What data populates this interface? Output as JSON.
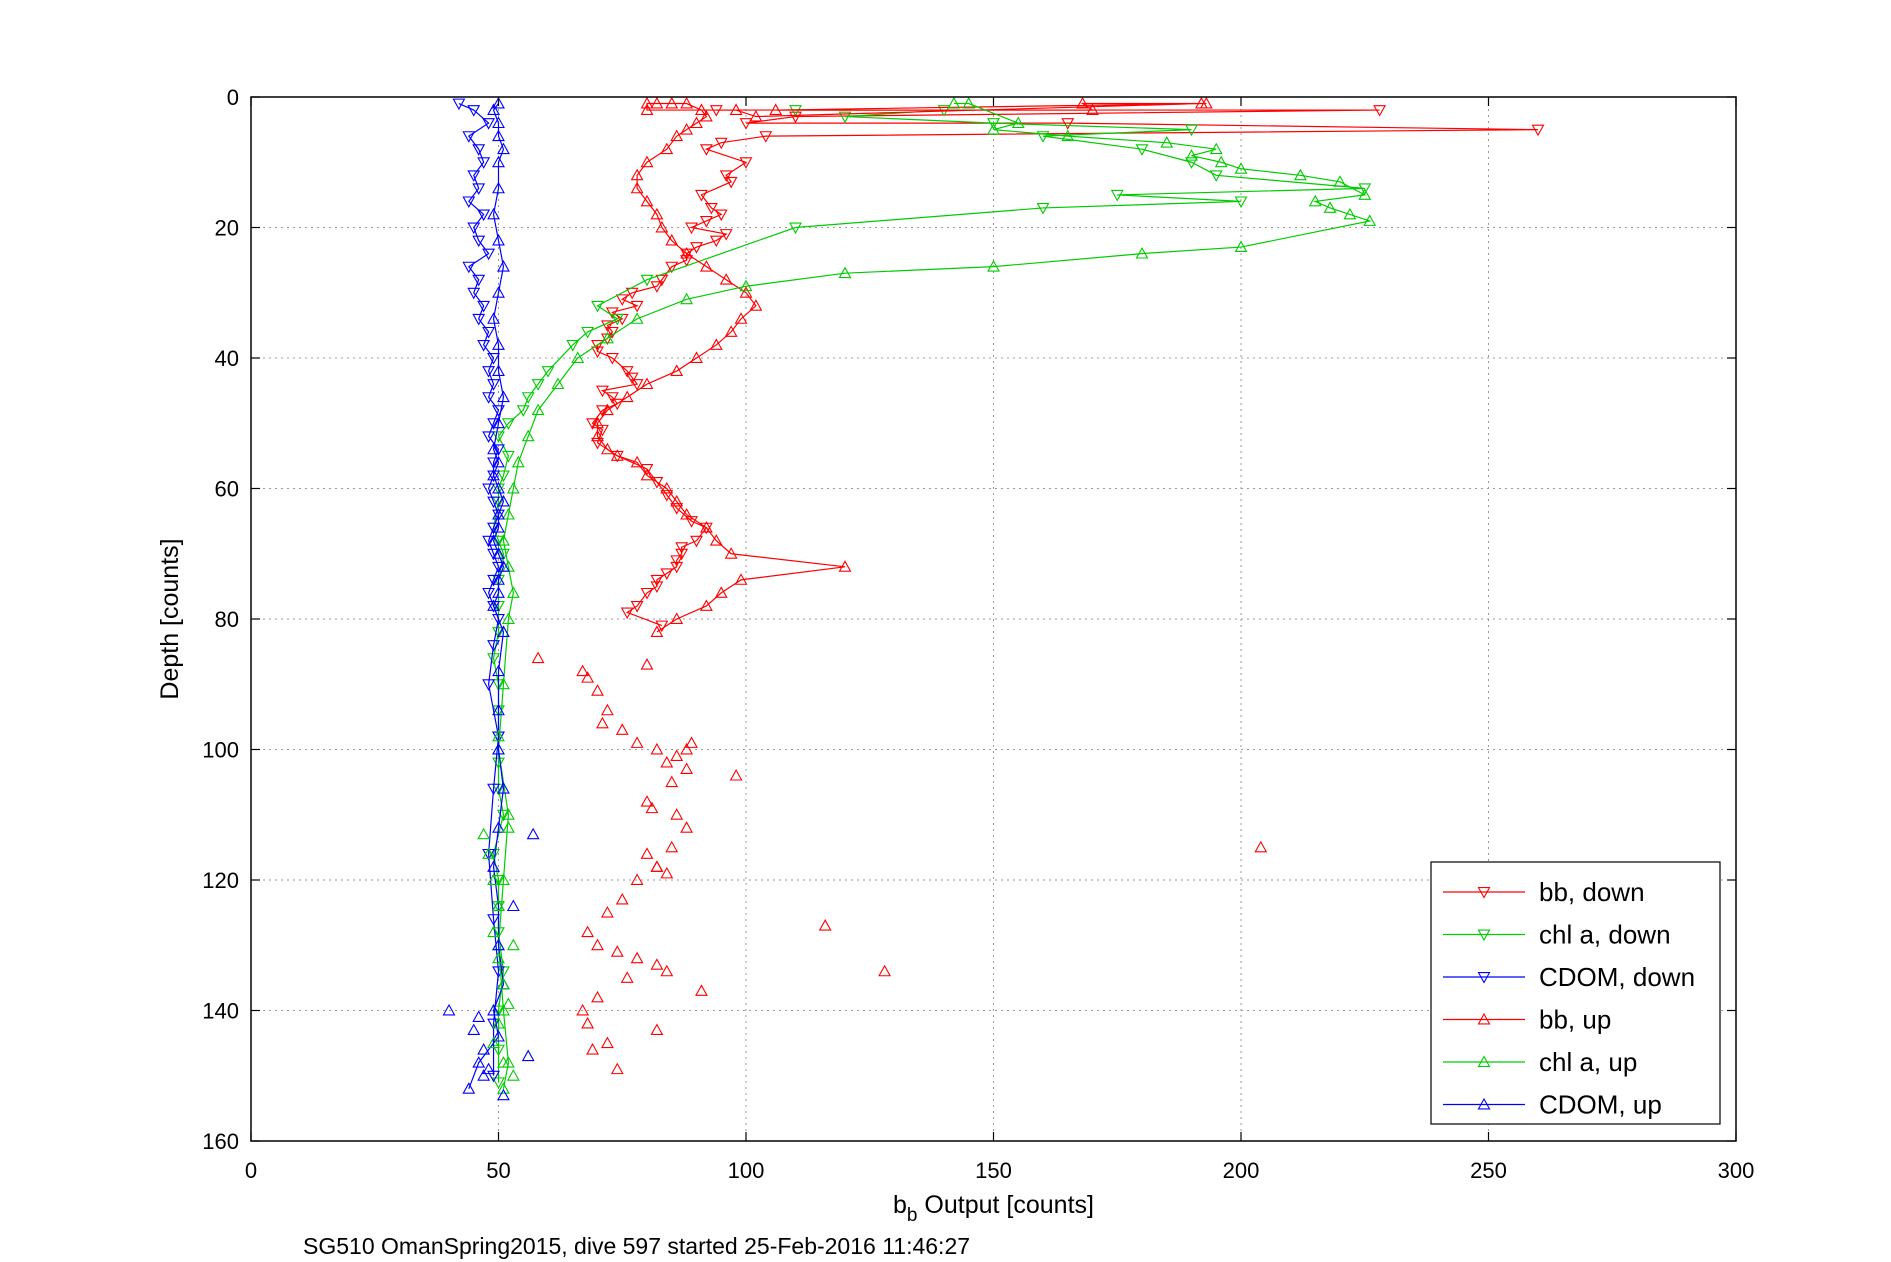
{
  "chart_data": {
    "type": "scatter",
    "title": "",
    "xlabel": "b",
    "xlabel_sub": "b",
    "xlabel_rest": " Output [counts]",
    "ylabel": "Depth [counts]",
    "caption": "SG510 OmanSpring2015, dive 597 started 25-Feb-2016 11:46:27",
    "xlim": [
      0,
      300
    ],
    "ylim": [
      0,
      160
    ],
    "y_reversed": true,
    "grid": true,
    "legend_position": "bottom-right",
    "xticks": [
      0,
      50,
      100,
      150,
      200,
      250,
      300
    ],
    "yticks": [
      0,
      20,
      40,
      60,
      80,
      100,
      120,
      140,
      160
    ],
    "series": [
      {
        "name": "bb, down",
        "color": "#ff0000",
        "marker": "triangle-down",
        "line": true,
        "x": [
          94,
          228,
          110,
          100,
          165,
          260,
          104,
          95,
          92,
          100,
          96,
          97,
          91,
          93,
          95,
          92,
          89,
          96,
          94,
          90,
          88,
          88,
          85,
          83,
          82,
          77,
          75,
          78,
          73,
          75,
          72,
          73,
          72,
          70,
          70,
          73,
          76,
          77,
          78,
          71,
          73,
          74,
          71,
          69,
          71,
          70,
          74,
          80,
          82,
          84,
          86,
          89,
          92,
          90,
          87,
          87,
          86,
          86,
          84,
          82,
          82,
          80,
          78,
          76,
          83
        ],
        "y": [
          2,
          2,
          3,
          4,
          4,
          5,
          6,
          7,
          8,
          10,
          12,
          13,
          15,
          17,
          18,
          19,
          20,
          21,
          22,
          23,
          24,
          25,
          26,
          28,
          29,
          30,
          31,
          32,
          33,
          34,
          35,
          36,
          37,
          38,
          39,
          40,
          42,
          43,
          44,
          45,
          46,
          47,
          48,
          50,
          51,
          53,
          55,
          57,
          59,
          61,
          63,
          65,
          66,
          68,
          69,
          70,
          71,
          72,
          73,
          74,
          75,
          76,
          78,
          79,
          81
        ]
      },
      {
        "name": "chl a, down",
        "color": "#00cc00",
        "marker": "triangle-down",
        "line": true,
        "x": [
          110,
          140,
          120,
          150,
          190,
          160,
          180,
          190,
          195,
          225,
          175,
          200,
          160,
          110,
          80,
          70,
          74,
          68,
          65,
          60,
          58,
          56,
          55,
          52,
          50,
          52,
          51,
          50,
          50,
          49,
          50,
          51,
          50,
          50,
          50,
          49,
          50,
          50,
          50,
          50,
          50,
          51,
          49,
          50,
          50,
          50,
          51,
          50,
          50,
          50
        ],
        "y": [
          2,
          2,
          3,
          4,
          5,
          6,
          8,
          10,
          12,
          14,
          15,
          16,
          17,
          20,
          28,
          32,
          34,
          36,
          38,
          42,
          44,
          46,
          48,
          50,
          52,
          55,
          58,
          60,
          62,
          66,
          68,
          70,
          74,
          78,
          82,
          86,
          90,
          94,
          98,
          102,
          106,
          110,
          116,
          120,
          124,
          128,
          134,
          140,
          146,
          151
        ]
      },
      {
        "name": "CDOM, down",
        "color": "#0000ff",
        "marker": "triangle-down",
        "line": true,
        "x": [
          42,
          45,
          48,
          44,
          46,
          47,
          45,
          46,
          44,
          47,
          45,
          46,
          48,
          44,
          46,
          45,
          47,
          46,
          48,
          47,
          49,
          48,
          49,
          48,
          50,
          49,
          48,
          50,
          49,
          49,
          48,
          49,
          50,
          49,
          48,
          49,
          50,
          49,
          48,
          49,
          50,
          49,
          48,
          50,
          49,
          48,
          49,
          50,
          49,
          49
        ],
        "y": [
          1,
          2,
          4,
          6,
          8,
          10,
          12,
          14,
          16,
          18,
          20,
          22,
          24,
          26,
          28,
          30,
          32,
          34,
          36,
          38,
          40,
          42,
          44,
          46,
          48,
          50,
          52,
          54,
          56,
          58,
          60,
          62,
          64,
          66,
          68,
          70,
          72,
          74,
          76,
          78,
          80,
          84,
          90,
          98,
          106,
          116,
          126,
          134,
          142,
          150
        ]
      },
      {
        "name": "bb, up",
        "color": "#ff0000",
        "marker": "triangle-up",
        "line": true,
        "x": [
          82,
          86,
          92,
          95,
          99,
          120,
          97,
          94,
          92,
          88,
          86,
          84,
          80,
          78,
          74,
          72,
          70,
          70,
          72,
          76,
          80,
          86,
          90,
          94,
          97,
          99,
          102,
          100,
          96,
          92,
          88,
          85,
          83,
          82,
          80,
          78,
          78,
          80,
          84,
          86,
          88,
          90,
          92,
          91,
          88,
          85,
          82,
          80,
          80,
          98,
          102,
          192,
          168,
          170,
          106,
          193
        ],
        "y": [
          82,
          80,
          78,
          76,
          74,
          72,
          70,
          68,
          66,
          64,
          62,
          60,
          58,
          56,
          55,
          54,
          52,
          50,
          48,
          46,
          44,
          42,
          40,
          38,
          36,
          34,
          32,
          30,
          28,
          26,
          24,
          22,
          20,
          18,
          16,
          14,
          12,
          10,
          8,
          6,
          5,
          4,
          3,
          2,
          1,
          1,
          1,
          1,
          2,
          2,
          3,
          1,
          1,
          2,
          2,
          1
        ]
      },
      {
        "name": "chl a, up",
        "color": "#00cc00",
        "marker": "triangle-up",
        "line": true,
        "x": [
          51,
          52,
          51,
          50,
          51,
          52,
          50,
          51,
          52,
          53,
          52,
          51,
          52,
          53,
          54,
          56,
          58,
          62,
          66,
          72,
          78,
          88,
          100,
          120,
          150,
          180,
          200,
          226,
          222,
          218,
          215,
          225,
          220,
          212,
          200,
          196,
          190,
          195,
          185,
          165,
          150,
          155,
          145,
          142
        ],
        "y": [
          152,
          148,
          140,
          130,
          120,
          110,
          100,
          90,
          80,
          76,
          72,
          68,
          64,
          60,
          56,
          52,
          48,
          44,
          40,
          37,
          34,
          31,
          29,
          27,
          26,
          24,
          23,
          19,
          18,
          17,
          16,
          15,
          13,
          12,
          11,
          10,
          9,
          8,
          7,
          6,
          5,
          4,
          1,
          1
        ]
      },
      {
        "name": "CDOM, up",
        "color": "#0000ff",
        "marker": "triangle-up",
        "line": true,
        "x": [
          44,
          46,
          50,
          49,
          51,
          50,
          50,
          49,
          50,
          51,
          50,
          50,
          50,
          51,
          49,
          50,
          50,
          51,
          50,
          49,
          50,
          50,
          51,
          50,
          49,
          50,
          49,
          50,
          51,
          50,
          50,
          49,
          50,
          51,
          50,
          49,
          50,
          50,
          51,
          50,
          50,
          49,
          50
        ],
        "y": [
          152,
          148,
          144,
          140,
          136,
          130,
          124,
          118,
          112,
          106,
          100,
          94,
          88,
          82,
          78,
          76,
          74,
          72,
          70,
          68,
          66,
          64,
          62,
          60,
          58,
          56,
          54,
          50,
          46,
          42,
          38,
          34,
          30,
          26,
          22,
          18,
          14,
          10,
          8,
          6,
          4,
          2,
          1
        ]
      }
    ],
    "scatter_points": [
      {
        "series": "bb, up",
        "x": [
          58,
          67,
          68,
          70,
          72,
          71,
          75,
          78,
          82,
          84,
          86,
          88,
          89,
          85,
          80,
          81,
          86,
          98,
          88,
          85,
          82,
          78,
          80,
          82,
          84,
          75,
          72,
          68,
          70,
          74,
          78,
          82,
          76,
          70,
          67,
          68,
          72,
          69,
          74,
          82,
          84,
          91,
          204,
          116,
          128,
          80,
          88
        ],
        "y": [
          86,
          88,
          89,
          91,
          94,
          96,
          97,
          99,
          100,
          102,
          101,
          103,
          99,
          105,
          108,
          109,
          110,
          104,
          112,
          115,
          118,
          120,
          116,
          118,
          119,
          123,
          125,
          128,
          130,
          131,
          132,
          133,
          135,
          138,
          140,
          142,
          145,
          146,
          149,
          143,
          134,
          137,
          115,
          127,
          134,
          87,
          100
        ]
      },
      {
        "series": "chl a, up",
        "x": [
          47,
          48,
          49,
          50,
          49,
          53,
          50,
          51,
          52,
          50,
          49,
          51,
          53,
          50,
          52
        ],
        "y": [
          113,
          116,
          120,
          124,
          128,
          130,
          132,
          136,
          139,
          142,
          145,
          148,
          150,
          98,
          112
        ]
      },
      {
        "series": "CDOM, up",
        "x": [
          40,
          57,
          56,
          45,
          47,
          48,
          46,
          53,
          47,
          51
        ],
        "y": [
          140,
          113,
          147,
          143,
          146,
          149,
          141,
          124,
          150,
          153
        ]
      }
    ]
  },
  "legend": {
    "items": [
      {
        "label": "bb, down",
        "color": "#ff0000",
        "marker": "triangle-down"
      },
      {
        "label": "chl a, down",
        "color": "#00cc00",
        "marker": "triangle-down"
      },
      {
        "label": "CDOM, down",
        "color": "#0000ff",
        "marker": "triangle-down"
      },
      {
        "label": "bb, up",
        "color": "#ff0000",
        "marker": "triangle-up"
      },
      {
        "label": "chl a, up",
        "color": "#00cc00",
        "marker": "triangle-up"
      },
      {
        "label": "CDOM, up",
        "color": "#0000ff",
        "marker": "triangle-up"
      }
    ]
  }
}
